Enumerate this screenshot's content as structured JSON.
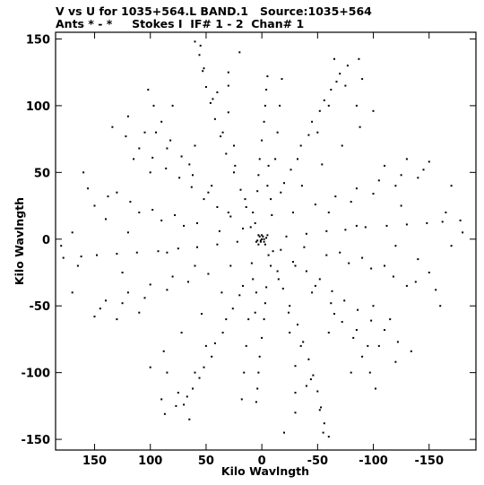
{
  "header": {
    "title_line1": "V vs U for 1035+564.L BAND.1   Source:1035+564",
    "title_line2": "Ants * - *     Stokes I  IF# 1 - 2  Chan# 1"
  },
  "chart_data": {
    "type": "scatter",
    "title": "V vs U for 1035+564.L BAND.1   Source:1035+564",
    "subtitle": "Ants * - *     Stokes I  IF# 1 - 2  Chan# 1",
    "xlabel": "Kilo Wavlngth",
    "ylabel": "Kilo Wavlngth",
    "xlim": [
      185,
      -192
    ],
    "ylim": [
      -158,
      155
    ],
    "x_reversed": true,
    "xticks": [
      150,
      100,
      50,
      0,
      -50,
      -100,
      -150
    ],
    "xtick_labels": [
      "150",
      "100",
      "50",
      "0",
      "-50",
      "-100",
      "-150"
    ],
    "yticks": [
      150,
      100,
      50,
      0,
      -50,
      -100,
      -150
    ],
    "ytick_labels": [
      "150",
      "100",
      "50",
      "0",
      "-50",
      "-100",
      "-150"
    ],
    "grid": false,
    "marker_color": "#000000",
    "series": [
      {
        "points": [
          [
            -2,
            0
          ],
          [
            1,
            -2
          ],
          [
            0,
            3
          ],
          [
            3,
            3
          ],
          [
            -3,
            -4
          ],
          [
            1,
            -1
          ],
          [
            2,
            2
          ],
          [
            -2,
            -2
          ],
          [
            -1,
            2
          ],
          [
            3,
            -4
          ],
          [
            -4,
            1
          ],
          [
            0,
            0
          ],
          [
            4,
            -1
          ],
          [
            -5,
            3
          ],
          [
            5,
            -2
          ],
          [
            -6,
            -12
          ],
          [
            -14,
            -24
          ],
          [
            -19,
            -37
          ],
          [
            -25,
            -50
          ],
          [
            -32,
            -64
          ],
          [
            -37,
            -77
          ],
          [
            -42,
            -90
          ],
          [
            -46,
            -102
          ],
          [
            -50,
            -114
          ],
          [
            -53,
            -126
          ],
          [
            -56,
            -138
          ],
          [
            -60,
            -148
          ],
          [
            6,
            12
          ],
          [
            14,
            24
          ],
          [
            19,
            37
          ],
          [
            25,
            50
          ],
          [
            32,
            64
          ],
          [
            37,
            77
          ],
          [
            42,
            90
          ],
          [
            46,
            102
          ],
          [
            50,
            114
          ],
          [
            53,
            126
          ],
          [
            56,
            138
          ],
          [
            60,
            148
          ],
          [
            -17,
            -8
          ],
          [
            -28,
            -17
          ],
          [
            -40,
            -24
          ],
          [
            -52,
            -30
          ],
          [
            -63,
            -39
          ],
          [
            -74,
            -46
          ],
          [
            -86,
            -53
          ],
          [
            -98,
            -61
          ],
          [
            -110,
            -68
          ],
          [
            -122,
            -77
          ],
          [
            -134,
            -84
          ],
          [
            17,
            8
          ],
          [
            28,
            17
          ],
          [
            40,
            24
          ],
          [
            52,
            30
          ],
          [
            63,
            39
          ],
          [
            74,
            46
          ],
          [
            86,
            53
          ],
          [
            98,
            61
          ],
          [
            110,
            68
          ],
          [
            122,
            77
          ],
          [
            134,
            84
          ],
          [
            -22,
            2
          ],
          [
            -40,
            4
          ],
          [
            -58,
            6
          ],
          [
            -75,
            7
          ],
          [
            -93,
            9
          ],
          [
            -112,
            10
          ],
          [
            -130,
            11
          ],
          [
            -148,
            12
          ],
          [
            -162,
            13
          ],
          [
            -178,
            14
          ],
          [
            22,
            -2
          ],
          [
            40,
            -4
          ],
          [
            58,
            -6
          ],
          [
            75,
            -7
          ],
          [
            93,
            -9
          ],
          [
            112,
            -10
          ],
          [
            130,
            -11
          ],
          [
            148,
            -12
          ],
          [
            162,
            -13
          ],
          [
            178,
            -14
          ],
          [
            -9,
            18
          ],
          [
            -17,
            35
          ],
          [
            -26,
            52
          ],
          [
            -35,
            70
          ],
          [
            -45,
            88
          ],
          [
            -56,
            104
          ],
          [
            -67,
            118
          ],
          [
            -77,
            130
          ],
          [
            -87,
            135
          ],
          [
            9,
            -18
          ],
          [
            17,
            -35
          ],
          [
            26,
            -52
          ],
          [
            35,
            -70
          ],
          [
            45,
            -88
          ],
          [
            56,
            -104
          ],
          [
            67,
            -118
          ],
          [
            77,
            -125
          ],
          [
            87,
            -131
          ],
          [
            -10,
            -9
          ],
          [
            -8,
            -20
          ],
          [
            -4,
            -36
          ],
          [
            -3,
            -48
          ],
          [
            -2,
            -60
          ],
          [
            0,
            -74
          ],
          [
            2,
            -88
          ],
          [
            3,
            -100
          ],
          [
            4,
            -112
          ],
          [
            5,
            -122
          ],
          [
            10,
            9
          ],
          [
            8,
            20
          ],
          [
            4,
            36
          ],
          [
            3,
            48
          ],
          [
            2,
            60
          ],
          [
            0,
            74
          ],
          [
            -2,
            88
          ],
          [
            -3,
            100
          ],
          [
            -4,
            112
          ],
          [
            -5,
            122
          ],
          [
            -30,
            -20
          ],
          [
            -48,
            -35
          ],
          [
            -62,
            -48
          ],
          [
            -72,
            -62
          ],
          [
            -82,
            -74
          ],
          [
            -90,
            -88
          ],
          [
            -97,
            -100
          ],
          [
            -102,
            -112
          ],
          [
            30,
            20
          ],
          [
            48,
            35
          ],
          [
            62,
            48
          ],
          [
            72,
            62
          ],
          [
            82,
            74
          ],
          [
            90,
            88
          ],
          [
            97,
            100
          ],
          [
            102,
            112
          ],
          [
            -28,
            20
          ],
          [
            -48,
            26
          ],
          [
            -66,
            32
          ],
          [
            -85,
            38
          ],
          [
            -105,
            44
          ],
          [
            -125,
            48
          ],
          [
            -145,
            52
          ],
          [
            28,
            -20
          ],
          [
            48,
            -26
          ],
          [
            66,
            -32
          ],
          [
            85,
            -38
          ],
          [
            105,
            -44
          ],
          [
            125,
            -48
          ],
          [
            145,
            -52
          ],
          [
            -38,
            -6
          ],
          [
            -58,
            -12
          ],
          [
            -78,
            -18
          ],
          [
            -98,
            -22
          ],
          [
            -118,
            -28
          ],
          [
            -138,
            -32
          ],
          [
            -156,
            -38
          ],
          [
            38,
            6
          ],
          [
            58,
            12
          ],
          [
            78,
            18
          ],
          [
            98,
            22
          ],
          [
            118,
            28
          ],
          [
            138,
            32
          ],
          [
            156,
            38
          ],
          [
            -20,
            42
          ],
          [
            -32,
            60
          ],
          [
            -42,
            78
          ],
          [
            -52,
            96
          ],
          [
            -62,
            112
          ],
          [
            -70,
            124
          ],
          [
            20,
            -42
          ],
          [
            32,
            -60
          ],
          [
            42,
            -78
          ],
          [
            52,
            -96
          ],
          [
            62,
            -112
          ],
          [
            70,
            -124
          ],
          [
            -15,
            -30
          ],
          [
            -24,
            -55
          ],
          [
            -35,
            -80
          ],
          [
            -44,
            -105
          ],
          [
            -52,
            -128
          ],
          [
            15,
            30
          ],
          [
            24,
            55
          ],
          [
            35,
            80
          ],
          [
            44,
            105
          ],
          [
            52,
            128
          ],
          [
            -36,
            40
          ],
          [
            -54,
            56
          ],
          [
            -72,
            70
          ],
          [
            -88,
            84
          ],
          [
            -100,
            96
          ],
          [
            36,
            -40
          ],
          [
            54,
            -56
          ],
          [
            72,
            -70
          ],
          [
            88,
            -84
          ],
          [
            100,
            -96
          ],
          [
            -45,
            -40
          ],
          [
            -65,
            -56
          ],
          [
            -85,
            -68
          ],
          [
            -105,
            -80
          ],
          [
            -120,
            -92
          ],
          [
            45,
            40
          ],
          [
            65,
            56
          ],
          [
            85,
            68
          ],
          [
            105,
            80
          ],
          [
            120,
            92
          ],
          [
            -60,
            20
          ],
          [
            -80,
            28
          ],
          [
            -100,
            34
          ],
          [
            -120,
            40
          ],
          [
            -140,
            46
          ],
          [
            -165,
            20
          ],
          [
            -170,
            -5
          ],
          [
            -150,
            -25
          ],
          [
            -130,
            -35
          ],
          [
            60,
            -20
          ],
          [
            80,
            -28
          ],
          [
            100,
            -34
          ],
          [
            120,
            -40
          ],
          [
            140,
            -46
          ],
          [
            165,
            -20
          ],
          [
            170,
            5
          ],
          [
            150,
            25
          ],
          [
            130,
            35
          ],
          [
            -12,
            60
          ],
          [
            -14,
            80
          ],
          [
            -16,
            100
          ],
          [
            -18,
            120
          ],
          [
            12,
            -60
          ],
          [
            14,
            -80
          ],
          [
            16,
            -100
          ],
          [
            18,
            -120
          ],
          [
            -70,
            -10
          ],
          [
            -90,
            -14
          ],
          [
            -110,
            -20
          ],
          [
            70,
            10
          ],
          [
            90,
            14
          ],
          [
            110,
            20
          ],
          [
            -40,
            -110
          ],
          [
            -30,
            -130
          ],
          [
            -20,
            -145
          ],
          [
            40,
            110
          ],
          [
            30,
            125
          ],
          [
            20,
            140
          ],
          [
            -60,
            -70
          ],
          [
            -80,
            -100
          ],
          [
            -95,
            -80
          ],
          [
            60,
            70
          ],
          [
            80,
            100
          ],
          [
            95,
            80
          ],
          [
            -110,
            55
          ],
          [
            -130,
            60
          ],
          [
            -150,
            58
          ],
          [
            110,
            -55
          ],
          [
            130,
            -60
          ],
          [
            150,
            -58
          ],
          [
            -5,
            40
          ],
          [
            -6,
            55
          ],
          [
            5,
            -40
          ],
          [
            6,
            -55
          ],
          [
            -8,
            30
          ],
          [
            8,
            -30
          ],
          [
            -25,
            -70
          ],
          [
            -30,
            -95
          ],
          [
            25,
            70
          ],
          [
            30,
            95
          ],
          [
            -85,
            10
          ],
          [
            -120,
            -5
          ],
          [
            -140,
            -15
          ],
          [
            85,
            -10
          ],
          [
            120,
            5
          ],
          [
            140,
            15
          ],
          [
            -50,
            80
          ],
          [
            -60,
            100
          ],
          [
            -75,
            115
          ],
          [
            50,
            -80
          ],
          [
            60,
            -100
          ],
          [
            75,
            -115
          ],
          [
            -115,
            -60
          ],
          [
            -100,
            -50
          ],
          [
            115,
            60
          ],
          [
            100,
            50
          ],
          [
            -125,
            25
          ],
          [
            125,
            -25
          ],
          [
            -170,
            40
          ],
          [
            -180,
            5
          ],
          [
            170,
            -40
          ],
          [
            180,
            -5
          ],
          [
            -160,
            -50
          ],
          [
            160,
            50
          ],
          [
            -90,
            120
          ],
          [
            -85,
            100
          ],
          [
            90,
            -120
          ],
          [
            85,
            -100
          ],
          [
            -65,
            135
          ],
          [
            65,
            -135
          ],
          [
            -55,
            -145
          ],
          [
            55,
            145
          ],
          [
            -30,
            -115
          ],
          [
            30,
            115
          ]
        ]
      }
    ]
  }
}
